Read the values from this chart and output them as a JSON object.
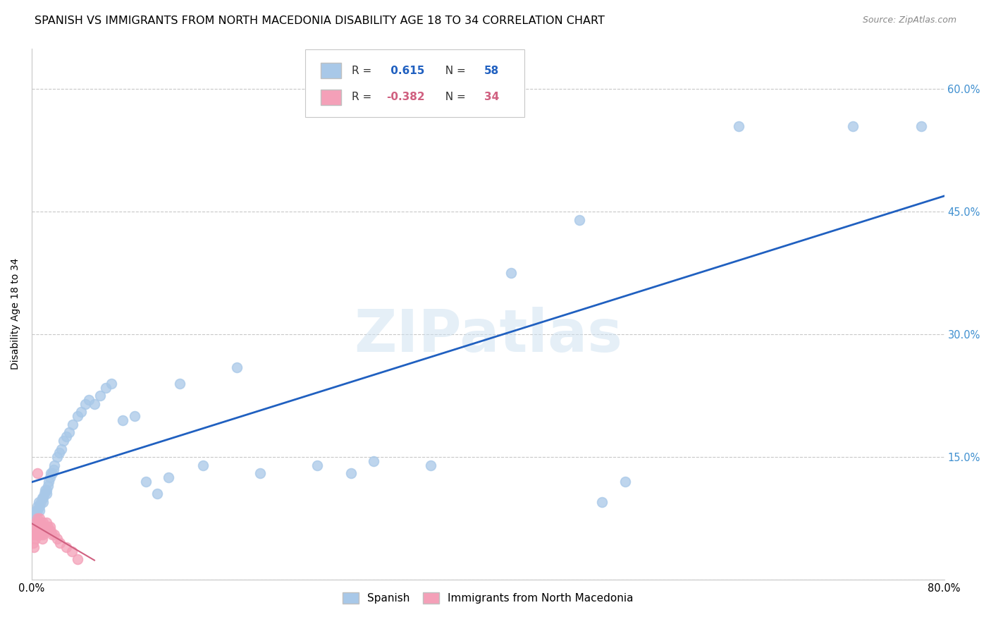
{
  "title": "SPANISH VS IMMIGRANTS FROM NORTH MACEDONIA DISABILITY AGE 18 TO 34 CORRELATION CHART",
  "source": "Source: ZipAtlas.com",
  "ylabel": "Disability Age 18 to 34",
  "xlim": [
    0,
    0.8
  ],
  "ylim": [
    0,
    0.65
  ],
  "xtick_positions": [
    0.0,
    0.1,
    0.2,
    0.3,
    0.4,
    0.5,
    0.6,
    0.7,
    0.8
  ],
  "xticklabels": [
    "0.0%",
    "",
    "",
    "",
    "",
    "",
    "",
    "",
    "80.0%"
  ],
  "ytick_positions": [
    0.0,
    0.15,
    0.3,
    0.45,
    0.6
  ],
  "ytick_labels": [
    "",
    "15.0%",
    "30.0%",
    "45.0%",
    "60.0%"
  ],
  "blue_r": 0.615,
  "blue_n": 58,
  "pink_r": -0.382,
  "pink_n": 34,
  "watermark": "ZIPatlas",
  "spanish_x": [
    0.002,
    0.003,
    0.004,
    0.005,
    0.005,
    0.006,
    0.007,
    0.007,
    0.008,
    0.009,
    0.01,
    0.01,
    0.011,
    0.012,
    0.013,
    0.013,
    0.014,
    0.015,
    0.016,
    0.017,
    0.018,
    0.019,
    0.02,
    0.022,
    0.024,
    0.026,
    0.028,
    0.03,
    0.033,
    0.036,
    0.04,
    0.043,
    0.047,
    0.05,
    0.055,
    0.06,
    0.065,
    0.07,
    0.08,
    0.09,
    0.1,
    0.11,
    0.12,
    0.13,
    0.15,
    0.18,
    0.2,
    0.25,
    0.28,
    0.3,
    0.35,
    0.42,
    0.48,
    0.52,
    0.62,
    0.72,
    0.78,
    0.5
  ],
  "spanish_y": [
    0.075,
    0.08,
    0.085,
    0.09,
    0.085,
    0.095,
    0.09,
    0.085,
    0.095,
    0.1,
    0.1,
    0.095,
    0.105,
    0.11,
    0.11,
    0.105,
    0.115,
    0.12,
    0.125,
    0.13,
    0.13,
    0.135,
    0.14,
    0.15,
    0.155,
    0.16,
    0.17,
    0.175,
    0.18,
    0.19,
    0.2,
    0.205,
    0.215,
    0.22,
    0.215,
    0.225,
    0.235,
    0.24,
    0.195,
    0.2,
    0.12,
    0.105,
    0.125,
    0.24,
    0.14,
    0.26,
    0.13,
    0.14,
    0.13,
    0.145,
    0.14,
    0.375,
    0.44,
    0.12,
    0.555,
    0.555,
    0.555,
    0.095
  ],
  "immig_x": [
    0.001,
    0.001,
    0.002,
    0.002,
    0.003,
    0.003,
    0.004,
    0.004,
    0.005,
    0.005,
    0.006,
    0.006,
    0.007,
    0.007,
    0.008,
    0.008,
    0.009,
    0.009,
    0.01,
    0.01,
    0.011,
    0.012,
    0.013,
    0.014,
    0.015,
    0.016,
    0.017,
    0.018,
    0.02,
    0.022,
    0.025,
    0.03,
    0.035,
    0.04
  ],
  "immig_y": [
    0.06,
    0.045,
    0.055,
    0.04,
    0.065,
    0.05,
    0.07,
    0.055,
    0.075,
    0.06,
    0.07,
    0.055,
    0.075,
    0.06,
    0.07,
    0.055,
    0.065,
    0.05,
    0.07,
    0.055,
    0.065,
    0.06,
    0.07,
    0.065,
    0.06,
    0.065,
    0.06,
    0.055,
    0.055,
    0.05,
    0.045,
    0.04,
    0.035,
    0.025
  ],
  "immig_outlier_x": [
    0.005
  ],
  "immig_outlier_y": [
    0.13
  ],
  "blue_color": "#a8c8e8",
  "pink_color": "#f4a0b8",
  "blue_line_color": "#2060c0",
  "pink_line_color": "#d06080",
  "grid_color": "#c8c8c8",
  "bg_color": "#ffffff",
  "right_axis_color": "#4090d0",
  "title_fontsize": 11.5,
  "label_fontsize": 10,
  "tick_fontsize": 10.5
}
